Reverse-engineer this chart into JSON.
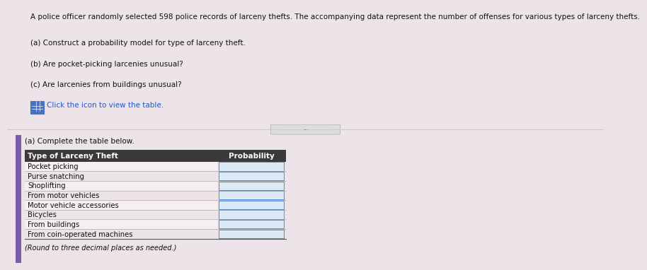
{
  "title_text": "A police officer randomly selected 598 police records of larceny thefts. The accompanying data represent the number of offenses for various types of larceny thefts.",
  "questions": [
    "(a) Construct a probability model for type of larceny theft.",
    "(b) Are pocket-picking larcenies unusual?",
    "(c) Are larcenies from buildings unusual?"
  ],
  "icon_text": "Click the icon to view the table.",
  "section_label": "(a) Complete the table below.",
  "table_header": [
    "Type of Larceny Theft",
    "Probability"
  ],
  "table_rows": [
    "Pocket picking",
    "Purse snatching",
    "Shoplifting",
    "From motor vehicles",
    "Motor vehicle accessories",
    "Bicycles",
    "From buildings",
    "From coin-operated machines"
  ],
  "table_note": "(Round to three decimal places as needed.)",
  "bg_color": "#ece4e8",
  "top_bg": "#ffffff",
  "left_accent_color": "#7b5ea7",
  "header_bg": "#3a3a3a",
  "header_fg": "#ffffff",
  "input_box_color": "#dce9f7",
  "divider_color": "#cccccc",
  "text_color": "#111111",
  "title_fontsize": 7.5,
  "question_fontsize": 7.5,
  "table_fontsize": 7.5,
  "icon_color": "#4472c4",
  "link_color": "#2255cc"
}
